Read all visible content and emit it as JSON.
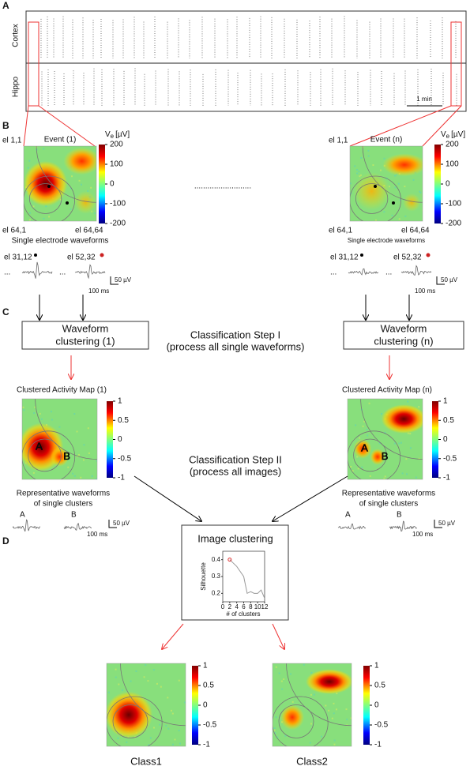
{
  "panel_labels": [
    "A",
    "B",
    "C",
    "D"
  ],
  "recording": {
    "rows": [
      "Cortex",
      "Hippo"
    ],
    "scale_bar": "1 min"
  },
  "events": {
    "items": [
      {
        "title": "Event (1)",
        "caption": "Single electrode waveforms"
      },
      {
        "title": "Event (n)",
        "caption": "Single electrode waveforms"
      }
    ],
    "corners": [
      "el 1,1",
      "el 64,1",
      "el 64,64"
    ],
    "electrodes": [
      "el 31,12",
      "el 52,32"
    ],
    "colorbar": {
      "symbol": "V",
      "subscript": "e",
      "unit": "[µV]",
      "ticks": [
        200,
        100,
        0,
        -100,
        -200
      ]
    },
    "separator": "..........................",
    "ellipsis": "...",
    "scale_bar": [
      "50 µV",
      "100 ms"
    ]
  },
  "step1": {
    "boxes": [
      [
        "Waveform",
        "clustering (1)"
      ],
      [
        "Waveform",
        "clustering (n)"
      ]
    ],
    "title": [
      "Classification Step I",
      "(process all single waveforms)"
    ]
  },
  "step2": {
    "maps": [
      "Clustered Activity Map (1)",
      "Clustered Activity Map (n)"
    ],
    "colorbar_ticks": [
      1,
      0.5,
      0,
      -0.5,
      -1
    ],
    "title": [
      "Classification Step II",
      "(process all images)"
    ],
    "caption": [
      "Representative waveforms",
      "of single clusters"
    ],
    "clusters": [
      "A",
      "B"
    ]
  },
  "image_clustering": {
    "title": "Image clustering",
    "chart": {
      "type": "line",
      "x": [
        2,
        3,
        4,
        5,
        6,
        7,
        8,
        9,
        10,
        11,
        12
      ],
      "values": [
        0.4,
        0.38,
        0.36,
        0.33,
        0.3,
        0.2,
        0.21,
        0.2,
        0.2,
        0.22,
        0.17
      ],
      "color": "#999999",
      "highlight_color": "#e33333",
      "xlim": [
        0,
        12
      ],
      "ylim": [
        0.15,
        0.45
      ],
      "xticks": [
        0,
        2,
        4,
        6,
        8,
        10,
        12
      ],
      "yticks": [
        0.2,
        0.3,
        0.4
      ],
      "xlabel": "# of clusters",
      "ylabel": "Silhouette"
    }
  },
  "classes": [
    "Class1",
    "Class2"
  ]
}
